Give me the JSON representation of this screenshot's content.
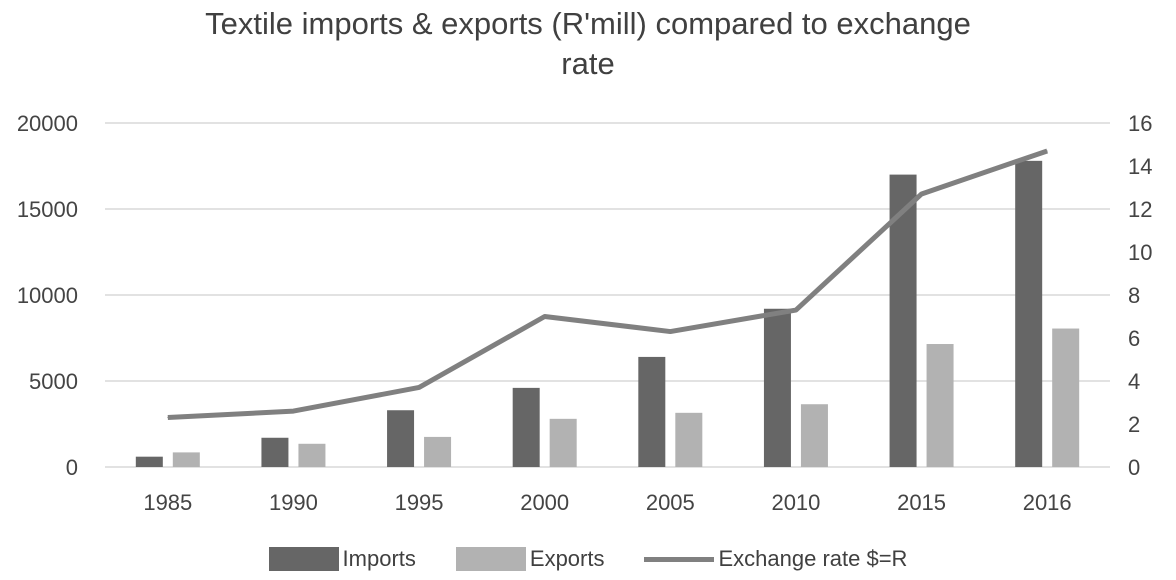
{
  "chart_data": {
    "type": "bar",
    "title_line1": "Textile imports & exports (R'mill) compared to exchange",
    "title_line2": "rate",
    "categories": [
      "1985",
      "1990",
      "1995",
      "2000",
      "2005",
      "2010",
      "2015",
      "2016"
    ],
    "series": [
      {
        "name": "Imports",
        "type": "bar",
        "axis": "left",
        "color": "#666666",
        "values": [
          600,
          1700,
          3300,
          4600,
          6400,
          9200,
          17000,
          17800
        ]
      },
      {
        "name": "Exports",
        "type": "bar",
        "axis": "left",
        "color": "#b2b2b2",
        "values": [
          850,
          1350,
          1750,
          2800,
          3150,
          3650,
          7150,
          8050
        ]
      },
      {
        "name": "Exchange rate $=R",
        "type": "line",
        "axis": "right",
        "color": "#808080",
        "values": [
          2.3,
          2.6,
          3.7,
          7.0,
          6.3,
          7.3,
          12.7,
          14.7
        ]
      }
    ],
    "y_left": {
      "min": 0,
      "max": 20000,
      "ticks": [
        "0",
        "5000",
        "10000",
        "15000",
        "20000"
      ]
    },
    "y_right": {
      "min": 0,
      "max": 16,
      "ticks": [
        "0",
        "2",
        "4",
        "6",
        "8",
        "10",
        "12",
        "14",
        "16"
      ]
    },
    "grid": true,
    "legend_position": "bottom"
  }
}
